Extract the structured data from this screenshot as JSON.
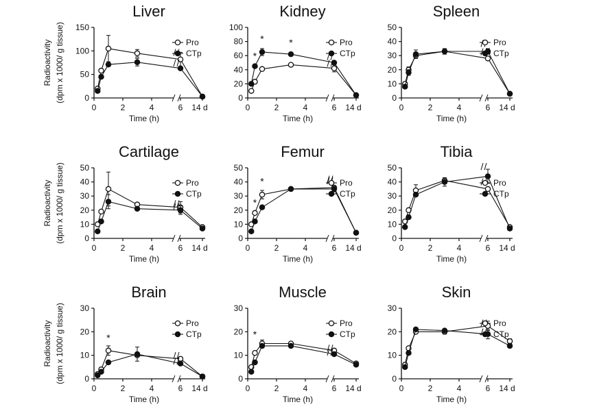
{
  "y_axis_label_line1": "Radioactivity",
  "y_axis_label_line2": "(dpm x 1000/ g tissue)",
  "chart_data": [
    {
      "type": "line",
      "title": "Liver",
      "xlabel": "Time (h)",
      "ylim": [
        0,
        150
      ],
      "yticks": [
        0,
        50,
        100,
        150
      ],
      "xticks": [
        "0",
        "2",
        "4",
        "6",
        "14 d"
      ],
      "series": [
        {
          "name": "Pro",
          "marker": "open",
          "x": [
            0.25,
            0.5,
            1,
            3,
            6,
            14
          ],
          "values": [
            20,
            58,
            105,
            95,
            82,
            3
          ],
          "err": [
            0,
            0,
            28,
            8,
            15,
            0
          ]
        },
        {
          "name": "CTp",
          "marker": "filled",
          "x": [
            0.25,
            0.5,
            1,
            3,
            6,
            14
          ],
          "values": [
            15,
            45,
            71,
            76,
            63,
            3
          ],
          "err": [
            0,
            0,
            0,
            8,
            0,
            0
          ]
        }
      ],
      "stars": []
    },
    {
      "type": "line",
      "title": "Kidney",
      "xlabel": "Time (h)",
      "ylim": [
        0,
        100
      ],
      "yticks": [
        0,
        20,
        40,
        60,
        80,
        100
      ],
      "xticks": [
        "0",
        "2",
        "4",
        "6",
        "14 d"
      ],
      "series": [
        {
          "name": "Pro",
          "marker": "open",
          "x": [
            0.25,
            0.5,
            1,
            3,
            6,
            14
          ],
          "values": [
            10,
            23,
            41,
            47,
            42,
            4
          ],
          "err": [
            0,
            0,
            0,
            0,
            5,
            0
          ]
        },
        {
          "name": "CTp",
          "marker": "filled",
          "x": [
            0.25,
            0.5,
            1,
            3,
            6,
            14
          ],
          "values": [
            20,
            45,
            65,
            62,
            50,
            4
          ],
          "err": [
            0,
            0,
            5,
            0,
            0,
            0
          ]
        }
      ],
      "stars": [
        {
          "x": 0.5,
          "y": 55,
          "label": "*"
        },
        {
          "x": 1,
          "y": 79,
          "label": "*"
        },
        {
          "x": 3,
          "y": 74,
          "label": "*"
        }
      ]
    },
    {
      "type": "line",
      "title": "Spleen",
      "xlabel": "Time (h)",
      "ylim": [
        0,
        50
      ],
      "yticks": [
        0,
        10,
        20,
        30,
        40,
        50
      ],
      "xticks": [
        "0",
        "2",
        "4",
        "6",
        "14 d"
      ],
      "series": [
        {
          "name": "Pro",
          "marker": "open",
          "x": [
            0.25,
            0.5,
            1,
            3,
            6,
            14
          ],
          "values": [
            10,
            20,
            30,
            33,
            28,
            3
          ],
          "err": [
            0,
            2,
            0,
            0,
            0,
            0
          ]
        },
        {
          "name": "CTp",
          "marker": "filled",
          "x": [
            0.25,
            0.5,
            1,
            3,
            6,
            14
          ],
          "values": [
            8,
            18,
            31,
            33,
            33,
            3
          ],
          "err": [
            0,
            2,
            3,
            2,
            2,
            0
          ]
        }
      ],
      "stars": []
    },
    {
      "type": "line",
      "title": "Cartilage",
      "xlabel": "Time (h)",
      "ylim": [
        0,
        50
      ],
      "yticks": [
        0,
        10,
        20,
        30,
        40,
        50
      ],
      "xticks": [
        "0",
        "2",
        "4",
        "6",
        "14 d"
      ],
      "series": [
        {
          "name": "Pro",
          "marker": "open",
          "x": [
            0.25,
            0.5,
            1,
            3,
            6,
            14
          ],
          "values": [
            10,
            19,
            35,
            24,
            22,
            8
          ],
          "err": [
            0,
            0,
            12,
            0,
            4,
            0
          ]
        },
        {
          "name": "CTp",
          "marker": "filled",
          "x": [
            0.25,
            0.5,
            1,
            3,
            6,
            14
          ],
          "values": [
            5,
            12,
            26,
            21,
            20,
            7
          ],
          "err": [
            0,
            0,
            5,
            0,
            3,
            0
          ]
        }
      ],
      "stars": []
    },
    {
      "type": "line",
      "title": "Femur",
      "xlabel": "Time (h)",
      "ylim": [
        0,
        50
      ],
      "yticks": [
        0,
        10,
        20,
        30,
        40,
        50
      ],
      "xticks": [
        "0",
        "2",
        "4",
        "6",
        "14 d"
      ],
      "series": [
        {
          "name": "Pro",
          "marker": "open",
          "x": [
            0.25,
            0.5,
            1,
            3,
            6,
            14
          ],
          "values": [
            10,
            18,
            31,
            35,
            36,
            4
          ],
          "err": [
            0,
            0,
            3,
            0,
            0,
            0
          ]
        },
        {
          "name": "CTp",
          "marker": "filled",
          "x": [
            0.25,
            0.5,
            1,
            3,
            6,
            14
          ],
          "values": [
            5,
            12,
            22,
            35,
            35,
            4
          ],
          "err": [
            0,
            0,
            0,
            0,
            2,
            0
          ]
        }
      ],
      "stars": [
        {
          "x": 0.5,
          "y": 23,
          "label": "*"
        },
        {
          "x": 1,
          "y": 38,
          "label": "*"
        }
      ]
    },
    {
      "type": "line",
      "title": "Tibia",
      "xlabel": "Time (h)",
      "ylim": [
        0,
        50
      ],
      "yticks": [
        0,
        10,
        20,
        30,
        40,
        50
      ],
      "xticks": [
        "0",
        "2",
        "4",
        "6",
        "14 d"
      ],
      "series": [
        {
          "name": "Pro",
          "marker": "open",
          "x": [
            0.25,
            0.5,
            1,
            3,
            6,
            14
          ],
          "values": [
            12,
            20,
            34,
            41,
            35,
            8
          ],
          "err": [
            0,
            0,
            4,
            0,
            0,
            0
          ]
        },
        {
          "name": "CTp",
          "marker": "filled",
          "x": [
            0.25,
            0.5,
            1,
            3,
            6,
            14
          ],
          "values": [
            8,
            15,
            31,
            40,
            44,
            7
          ],
          "err": [
            0,
            0,
            0,
            3,
            5,
            0
          ]
        }
      ],
      "stars": []
    },
    {
      "type": "line",
      "title": "Brain",
      "xlabel": "Time (h)",
      "ylim": [
        0,
        30
      ],
      "yticks": [
        0,
        10,
        20,
        30
      ],
      "xticks": [
        "0",
        "2",
        "4",
        "6",
        "14 d"
      ],
      "series": [
        {
          "name": "Pro",
          "marker": "open",
          "x": [
            0.25,
            0.5,
            1,
            3,
            6,
            14
          ],
          "values": [
            2,
            4,
            12,
            10,
            8.5,
            1
          ],
          "err": [
            0,
            0,
            2,
            0,
            0,
            0
          ]
        },
        {
          "name": "CTp",
          "marker": "filled",
          "x": [
            0.25,
            0.5,
            1,
            3,
            6,
            14
          ],
          "values": [
            1.5,
            3,
            7,
            10.5,
            6.5,
            1
          ],
          "err": [
            0,
            0,
            0,
            3,
            0,
            0
          ]
        }
      ],
      "stars": [
        {
          "x": 1,
          "y": 16,
          "label": "*"
        }
      ]
    },
    {
      "type": "line",
      "title": "Muscle",
      "xlabel": "Time (h)",
      "ylim": [
        0,
        30
      ],
      "yticks": [
        0,
        10,
        20,
        30
      ],
      "xticks": [
        "0",
        "2",
        "4",
        "6",
        "14 d"
      ],
      "series": [
        {
          "name": "Pro",
          "marker": "open",
          "x": [
            0.25,
            0.5,
            1,
            3,
            6,
            14
          ],
          "values": [
            5,
            11,
            15,
            15,
            12,
            6.5
          ],
          "err": [
            0,
            0,
            1.5,
            0,
            0,
            0
          ]
        },
        {
          "name": "CTp",
          "marker": "filled",
          "x": [
            0.25,
            0.5,
            1,
            3,
            6,
            14
          ],
          "values": [
            3,
            7,
            14,
            14,
            10.5,
            6
          ],
          "err": [
            0,
            0,
            0,
            0,
            0,
            0
          ]
        }
      ],
      "stars": [
        {
          "x": 0.5,
          "y": 17.5,
          "label": "*"
        }
      ]
    },
    {
      "type": "line",
      "title": "Skin",
      "xlabel": "Time (h)",
      "ylim": [
        0,
        30
      ],
      "yticks": [
        0,
        10,
        20,
        30
      ],
      "xticks": [
        "0",
        "2",
        "4",
        "6",
        "14 d"
      ],
      "series": [
        {
          "name": "Pro",
          "marker": "open",
          "x": [
            0.25,
            0.5,
            1,
            3,
            6,
            14
          ],
          "values": [
            6,
            13,
            20,
            20,
            22.5,
            16
          ],
          "err": [
            0,
            0,
            0,
            1,
            2,
            1
          ]
        },
        {
          "name": "CTp",
          "marker": "filled",
          "x": [
            0.25,
            0.5,
            1,
            3,
            6,
            14
          ],
          "values": [
            5,
            11,
            21,
            20.5,
            19,
            14
          ],
          "err": [
            0,
            0,
            0,
            0,
            2,
            0
          ]
        }
      ],
      "stars": []
    }
  ]
}
